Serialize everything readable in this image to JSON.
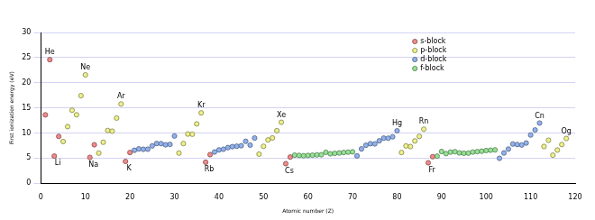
{
  "chart_data": {
    "type": "scatter",
    "x_label": "Atomic number (Z)",
    "y_label": "First ionization energy (eV)",
    "xlim": [
      0,
      120
    ],
    "xticks": [
      0,
      10,
      20,
      30,
      40,
      50,
      60,
      70,
      80,
      90,
      100,
      110,
      120
    ],
    "ylim": [
      0,
      30
    ],
    "yticks": [
      0,
      5,
      10,
      15,
      20,
      25,
      30
    ],
    "grid": true,
    "legend": "upper right",
    "marker": "circle",
    "series": [
      {
        "name": "s-block",
        "color": "#f08a8a",
        "x": [
          1,
          2,
          3,
          4,
          11,
          12,
          19,
          20,
          37,
          38,
          55,
          56,
          87,
          88
        ],
        "values": [
          13.6,
          24.59,
          5.39,
          9.32,
          5.14,
          7.65,
          4.34,
          6.11,
          4.18,
          5.69,
          3.89,
          5.21,
          4.07,
          5.28
        ]
      },
      {
        "name": "p-block",
        "color": "#eef08a",
        "x": [
          5,
          6,
          7,
          8,
          9,
          10,
          13,
          14,
          15,
          16,
          17,
          18,
          31,
          32,
          33,
          34,
          35,
          36,
          49,
          50,
          51,
          52,
          53,
          54,
          81,
          82,
          83,
          84,
          85,
          86,
          113,
          114,
          115,
          116,
          117,
          118
        ],
        "values": [
          8.3,
          11.26,
          14.53,
          13.62,
          17.42,
          21.56,
          5.99,
          8.15,
          10.49,
          10.36,
          12.97,
          15.76,
          6.0,
          7.9,
          9.79,
          9.75,
          11.81,
          14.0,
          5.79,
          7.34,
          8.61,
          9.01,
          10.45,
          12.13,
          6.11,
          7.42,
          7.29,
          8.41,
          9.32,
          10.75,
          7.31,
          8.54,
          5.58,
          6.6,
          7.7,
          8.9
        ]
      },
      {
        "name": "d-block",
        "color": "#92b2ee",
        "x": [
          21,
          22,
          23,
          24,
          25,
          26,
          27,
          28,
          29,
          30,
          39,
          40,
          41,
          42,
          43,
          44,
          45,
          46,
          47,
          48,
          71,
          72,
          73,
          74,
          75,
          76,
          77,
          78,
          79,
          80,
          103,
          104,
          105,
          106,
          107,
          108,
          109,
          110,
          111,
          112
        ],
        "values": [
          6.56,
          6.83,
          6.75,
          6.77,
          7.43,
          7.9,
          7.88,
          7.64,
          7.73,
          9.39,
          6.22,
          6.63,
          6.76,
          7.09,
          7.28,
          7.36,
          7.46,
          8.34,
          7.58,
          8.99,
          5.43,
          6.83,
          7.55,
          7.86,
          7.83,
          8.44,
          8.97,
          8.96,
          9.23,
          10.44,
          4.96,
          6.02,
          6.8,
          7.8,
          7.7,
          7.6,
          8.0,
          9.6,
          10.6,
          11.97
        ]
      },
      {
        "name": "f-block",
        "color": "#96e296",
        "x": [
          57,
          58,
          59,
          60,
          61,
          62,
          63,
          64,
          65,
          66,
          67,
          68,
          69,
          70,
          89,
          90,
          91,
          92,
          93,
          94,
          95,
          96,
          97,
          98,
          99,
          100,
          101,
          102
        ],
        "values": [
          5.58,
          5.54,
          5.47,
          5.53,
          5.58,
          5.64,
          5.67,
          6.15,
          5.86,
          5.94,
          6.02,
          6.11,
          6.18,
          6.25,
          5.38,
          6.31,
          5.89,
          6.19,
          6.27,
          6.03,
          5.97,
          5.99,
          6.2,
          6.28,
          6.37,
          6.5,
          6.58,
          6.63
        ]
      }
    ],
    "annotations": [
      {
        "text": "He",
        "x": 2
      },
      {
        "text": "Li",
        "x": 3
      },
      {
        "text": "Ne",
        "x": 10
      },
      {
        "text": "Na",
        "x": 11
      },
      {
        "text": "Ar",
        "x": 18
      },
      {
        "text": "K",
        "x": 19
      },
      {
        "text": "Kr",
        "x": 36
      },
      {
        "text": "Rb",
        "x": 37
      },
      {
        "text": "Xe",
        "x": 54
      },
      {
        "text": "Cs",
        "x": 55
      },
      {
        "text": "Hg",
        "x": 80
      },
      {
        "text": "Rn",
        "x": 86
      },
      {
        "text": "Fr",
        "x": 87
      },
      {
        "text": "Cn",
        "x": 112
      },
      {
        "text": "Og",
        "x": 118
      }
    ]
  }
}
